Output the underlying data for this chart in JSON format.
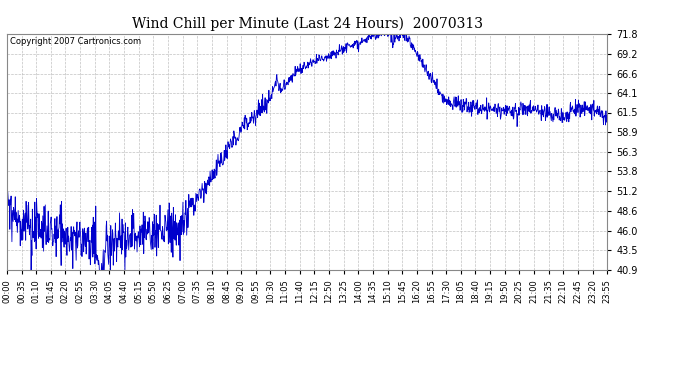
{
  "title": "Wind Chill per Minute (Last 24 Hours)  20070313",
  "copyright": "Copyright 2007 Cartronics.com",
  "line_color": "#0000cc",
  "background_color": "#ffffff",
  "plot_bg_color": "#ffffff",
  "grid_color": "#bbbbbb",
  "yticks": [
    40.9,
    43.5,
    46.0,
    48.6,
    51.2,
    53.8,
    56.3,
    58.9,
    61.5,
    64.1,
    66.6,
    69.2,
    71.8
  ],
  "ymin": 40.9,
  "ymax": 71.8,
  "xtick_labels": [
    "00:00",
    "00:35",
    "01:10",
    "01:45",
    "02:20",
    "02:55",
    "03:30",
    "04:05",
    "04:40",
    "05:15",
    "05:50",
    "06:25",
    "07:00",
    "07:35",
    "08:10",
    "08:45",
    "09:20",
    "09:55",
    "10:30",
    "11:05",
    "11:40",
    "12:15",
    "12:50",
    "13:25",
    "14:00",
    "14:35",
    "15:10",
    "15:45",
    "16:20",
    "16:55",
    "17:30",
    "18:05",
    "18:40",
    "19:15",
    "19:50",
    "20:25",
    "21:00",
    "21:35",
    "22:10",
    "22:45",
    "23:20",
    "23:55"
  ],
  "figwidth": 6.9,
  "figheight": 3.75,
  "dpi": 100
}
